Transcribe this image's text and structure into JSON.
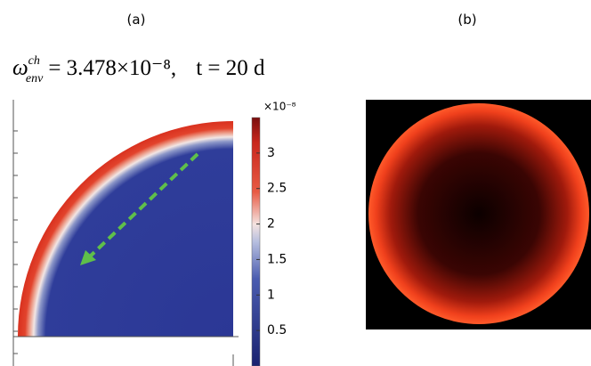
{
  "panels": [
    {
      "label": "(a)"
    },
    {
      "label": "(b)"
    }
  ],
  "formula": {
    "symbol": "ω",
    "sup": "ch",
    "sub": "env",
    "value": "= 3.478×10⁻⁸,",
    "time": "t = 20 d"
  },
  "colorbar": {
    "multiplier": "×10⁻⁸",
    "range": [
      0,
      3.5
    ],
    "ticks": [
      0.5,
      1,
      1.5,
      2,
      2.5,
      3
    ]
  }
}
